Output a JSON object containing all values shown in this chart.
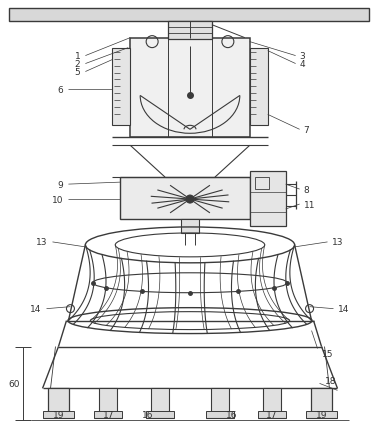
{
  "bg_color": "#ffffff",
  "line_color": "#3a3a3a",
  "label_color": "#333333",
  "label_fontsize": 6.5,
  "fig_width": 3.81,
  "fig_height": 4.31
}
